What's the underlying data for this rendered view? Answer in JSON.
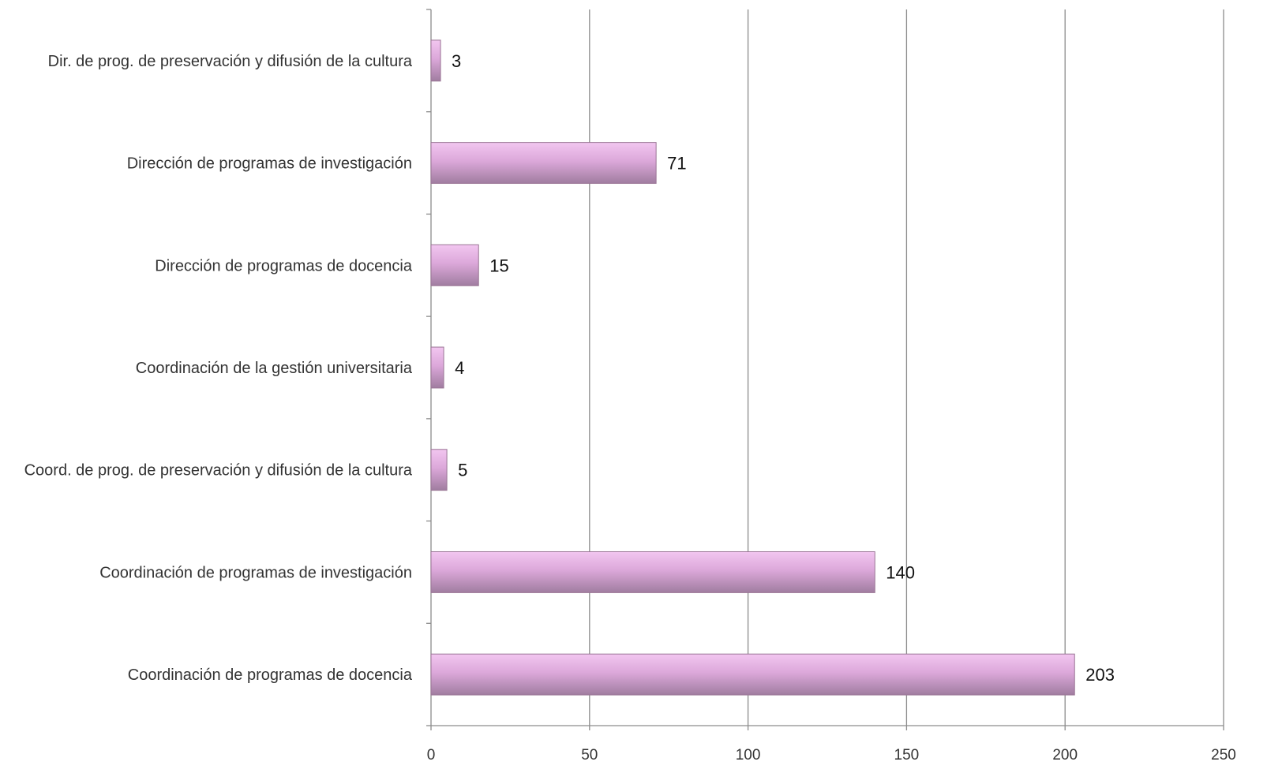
{
  "chart_data": {
    "type": "bar",
    "orientation": "horizontal",
    "categories": [
      "Dir. de prog. de preservación y difusión de la cultura",
      "Dirección de programas de investigación",
      "Dirección de programas de docencia",
      "Coordinación de la gestión universitaria",
      "Coord. de prog. de preservación y difusión de la cultura",
      "Coordinación de programas de investigación",
      "Coordinación de programas de docencia"
    ],
    "values": [
      3,
      71,
      15,
      4,
      5,
      140,
      203
    ],
    "data_labels": [
      "3",
      "71",
      "15",
      "4",
      "5",
      "140",
      "203"
    ],
    "x_ticks": [
      "0",
      "50",
      "100",
      "150",
      "200",
      "250"
    ],
    "xlim": [
      0,
      250
    ],
    "grid": true,
    "legend": "none",
    "bar_color_top": "#f2c6f0",
    "bar_color_bottom": "#a07da0",
    "title": "",
    "xlabel": "",
    "ylabel": ""
  }
}
